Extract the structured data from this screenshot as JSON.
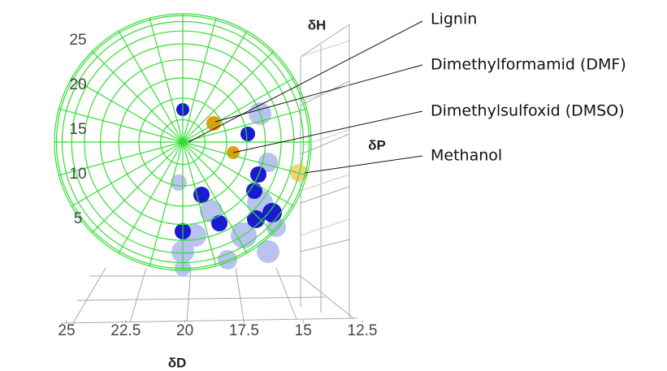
{
  "chart_data": {
    "type": "scatter3d",
    "xlabel": "δD",
    "ylabel": "δH",
    "zlabel": "δP",
    "xlim": [
      25,
      12.5
    ],
    "xticks": [
      25,
      22.5,
      20,
      17.5,
      15,
      12.5
    ],
    "ylim": [
      0,
      25
    ],
    "yticks": [
      5,
      10,
      15,
      20,
      25
    ],
    "annotations": [
      "Lignin",
      "Dimethylformamid (DMF)",
      "Dimethylsulfoxid (DMSO)",
      "Methanol"
    ]
  }
}
